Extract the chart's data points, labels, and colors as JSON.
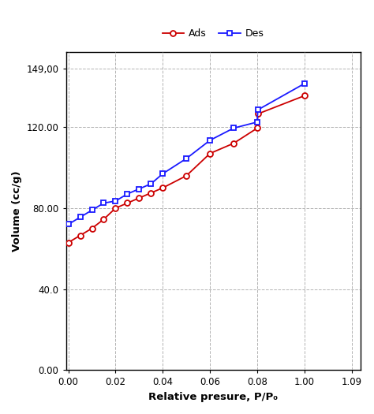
{
  "ads_x_real": [
    0.0,
    0.005,
    0.01,
    0.015,
    0.02,
    0.025,
    0.03,
    0.035,
    0.04,
    0.05,
    0.06,
    0.07,
    0.08,
    0.09,
    1.0
  ],
  "ads_y": [
    63.0,
    66.5,
    70.0,
    74.5,
    80.0,
    82.5,
    85.0,
    87.5,
    90.0,
    96.0,
    107.0,
    112.0,
    119.5,
    126.5,
    135.5
  ],
  "des_x_real": [
    0.0,
    0.005,
    0.01,
    0.015,
    0.02,
    0.025,
    0.03,
    0.035,
    0.04,
    0.05,
    0.06,
    0.07,
    0.08,
    0.09,
    1.0
  ],
  "des_y": [
    72.0,
    75.5,
    79.0,
    82.5,
    83.5,
    87.0,
    89.5,
    92.0,
    97.0,
    104.5,
    113.5,
    119.5,
    122.5,
    128.5,
    141.5
  ],
  "tick_positions_real": [
    0.0,
    0.02,
    0.04,
    0.06,
    0.08,
    1.0,
    1.09
  ],
  "tick_labels_x": [
    "0.00",
    "0.02",
    "0.04",
    "0.06",
    "0.08",
    "1.00",
    "1.09"
  ],
  "tick_labels_y": [
    "0.00",
    "40.0",
    "80.00",
    "120.00",
    "149,00"
  ],
  "ytick_positions": [
    0.0,
    40.0,
    80.0,
    120.0,
    149.0
  ],
  "ads_color": "#cc0000",
  "des_color": "#1a1aff",
  "xlabel": "Relative presure, P/P₀",
  "ylabel": "Volume (cc/g)",
  "ylim": [
    0.0,
    157.0
  ],
  "legend_ads": "Ads",
  "legend_des": "Des",
  "background_color": "#ffffff",
  "grid_color": "#aaaaaa"
}
